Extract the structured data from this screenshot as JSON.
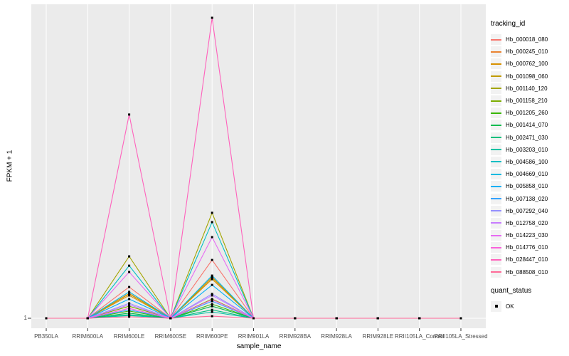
{
  "chart": {
    "y_axis_title": "FPKM + 1",
    "x_axis_title": "sample_name",
    "y_tick_label": "1",
    "tracking_legend_title": "tracking_id",
    "quant_legend_title": "quant_status",
    "quant_legend_entry": "OK"
  },
  "colors": {
    "panel_bg": "#EBEBEB",
    "gridline": "#FFFFFF",
    "tick_mark": "#333333",
    "axis_text": "#4D4D4D",
    "marker": "#000000",
    "legend_key_bg": "#F2F2F2"
  },
  "chart_data": {
    "type": "line",
    "title": "",
    "xlabel": "sample_name",
    "ylabel": "FPKM + 1",
    "legend_position": "right",
    "grid": "white vertical major gridlines at each category; horizontal gridline at y=1",
    "y_tick_labels": [
      "1"
    ],
    "value_scale": {
      "baseline_value": 1,
      "note": "Only the tick 'FPKM+1 = 1' is labeled on the y axis. Series values below are relative peak heights (0 = baseline value 1, 1.0 = tallest peak of Hb_028447_010 at RRIM600PE). All series are flat at the baseline except peaks at RRIM600LE and RRIM600PE."
    },
    "marker": {
      "shape": "small black square",
      "meaning": "quant_status OK",
      "color": "#000000"
    },
    "categories": [
      "PB350LA",
      "RRIM600LA",
      "RRIM600LE",
      "RRIM600SE",
      "RRIM600PE",
      "RRIM901LA",
      "RRIM928BA",
      "RRIM928LA",
      "RRIM928LE",
      "RRII105LA_Control",
      "RRII105LA_Stressed"
    ],
    "series": [
      {
        "name": "Hb_000018_080",
        "color": "#F8766D",
        "values": [
          0,
          0,
          0.104,
          0,
          0.194,
          0,
          0,
          0,
          0,
          0,
          0
        ]
      },
      {
        "name": "Hb_000245_010",
        "color": "#EA8331",
        "values": [
          0,
          0,
          0.083,
          0,
          0.137,
          0,
          0,
          0,
          0,
          0,
          0
        ]
      },
      {
        "name": "Hb_000762_100",
        "color": "#D89000",
        "values": [
          0,
          0,
          0.076,
          0,
          0.13,
          0,
          0,
          0,
          0,
          0,
          0
        ]
      },
      {
        "name": "Hb_001098_060",
        "color": "#C09B00",
        "values": [
          0,
          0,
          0.081,
          0,
          0.135,
          0,
          0,
          0,
          0,
          0,
          0
        ]
      },
      {
        "name": "Hb_001140_120",
        "color": "#A3A500",
        "values": [
          0,
          0,
          0.206,
          0,
          0.351,
          0,
          0,
          0,
          0,
          0,
          0
        ]
      },
      {
        "name": "Hb_001158_210",
        "color": "#7CAE00",
        "values": [
          0,
          0,
          0.04,
          0,
          0.064,
          0,
          0,
          0,
          0,
          0,
          0
        ]
      },
      {
        "name": "Hb_001205_260",
        "color": "#39B600",
        "values": [
          0,
          0,
          0.024,
          0,
          0.047,
          0,
          0,
          0,
          0,
          0,
          0
        ]
      },
      {
        "name": "Hb_001414_070",
        "color": "#00BB4E",
        "values": [
          0,
          0,
          0.017,
          0,
          0.04,
          0,
          0,
          0,
          0,
          0,
          0
        ]
      },
      {
        "name": "Hb_002471_030",
        "color": "#00BF7D",
        "values": [
          0,
          0,
          0.012,
          0,
          0.028,
          0,
          0,
          0,
          0,
          0,
          0
        ]
      },
      {
        "name": "Hb_003203_010",
        "color": "#00C1A3",
        "values": [
          0,
          0,
          0.009,
          0,
          0.021,
          0,
          0,
          0,
          0,
          0,
          0
        ]
      },
      {
        "name": "Hb_004586_100",
        "color": "#00BFC4",
        "values": [
          0,
          0,
          0.175,
          0,
          0.32,
          0,
          0,
          0,
          0,
          0,
          0
        ]
      },
      {
        "name": "Hb_004669_010",
        "color": "#00BAE0",
        "values": [
          0,
          0,
          0.088,
          0,
          0.142,
          0,
          0,
          0,
          0,
          0,
          0
        ]
      },
      {
        "name": "Hb_005858_010",
        "color": "#00B0F6",
        "values": [
          0,
          0,
          0.064,
          0,
          0.111,
          0,
          0,
          0,
          0,
          0,
          0
        ]
      },
      {
        "name": "Hb_007138_020",
        "color": "#35A2FF",
        "values": [
          0,
          0,
          0.028,
          0,
          0.057,
          0,
          0,
          0,
          0,
          0,
          0
        ]
      },
      {
        "name": "Hb_007292_040",
        "color": "#9590FF",
        "values": [
          0,
          0,
          0.05,
          0,
          0.081,
          0,
          0,
          0,
          0,
          0,
          0
        ]
      },
      {
        "name": "Hb_012758_020",
        "color": "#C77CFF",
        "values": [
          0,
          0,
          0.045,
          0,
          0.076,
          0,
          0,
          0,
          0,
          0,
          0
        ]
      },
      {
        "name": "Hb_014223_030",
        "color": "#E76BF3",
        "values": [
          0,
          0,
          0.154,
          0,
          0.27,
          0,
          0,
          0,
          0,
          0,
          0
        ]
      },
      {
        "name": "Hb_014776_010",
        "color": "#FA62DB",
        "values": [
          0,
          0,
          0.033,
          0,
          0.062,
          0,
          0,
          0,
          0,
          0,
          0
        ]
      },
      {
        "name": "Hb_028447_010",
        "color": "#FF62BC",
        "values": [
          0,
          0,
          0.678,
          0,
          1.0,
          0,
          0,
          0,
          0,
          0,
          0
        ]
      },
      {
        "name": "Hb_088508_010",
        "color": "#FF6A98",
        "values": [
          0,
          0,
          0.005,
          0,
          0.007,
          0,
          0,
          0,
          0,
          0,
          0
        ]
      }
    ],
    "quant_status": [
      {
        "label": "OK",
        "marker": "black square"
      }
    ]
  }
}
